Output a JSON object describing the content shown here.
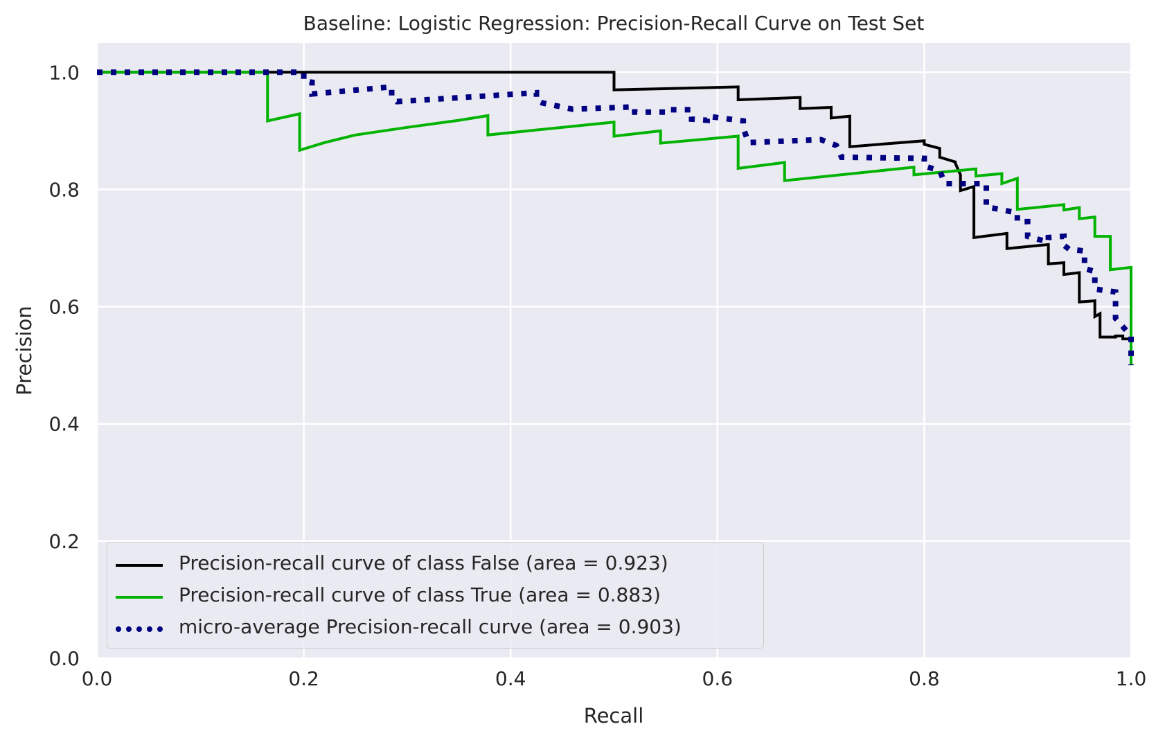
{
  "chart_data": {
    "type": "line",
    "title": "Baseline: Logistic Regression: Precision-Recall Curve on Test Set",
    "xlabel": "Recall",
    "ylabel": "Precision",
    "xlim": [
      0.0,
      1.0
    ],
    "ylim": [
      0.0,
      1.05
    ],
    "x_ticks": [
      "0.0",
      "0.2",
      "0.4",
      "0.6",
      "0.8",
      "1.0"
    ],
    "y_ticks": [
      "0.0",
      "0.2",
      "0.4",
      "0.6",
      "0.8",
      "1.0"
    ],
    "grid": true,
    "legend_position": "lower-left",
    "series": [
      {
        "name": "Precision-recall curve of class False (area = 0.923)",
        "color": "#000000",
        "style": "solid",
        "x": [
          0.0,
          0.5,
          0.5,
          0.62,
          0.62,
          0.68,
          0.68,
          0.71,
          0.71,
          0.728,
          0.728,
          0.8,
          0.8,
          0.815,
          0.815,
          0.83,
          0.83,
          0.835,
          0.835,
          0.848,
          0.848,
          0.88,
          0.88,
          0.92,
          0.92,
          0.935,
          0.935,
          0.95,
          0.95,
          0.965,
          0.965,
          0.97,
          0.97,
          0.985,
          0.985,
          0.992,
          0.992,
          1.0
        ],
        "y": [
          1.0,
          1.0,
          0.97,
          0.975,
          0.953,
          0.957,
          0.938,
          0.94,
          0.922,
          0.925,
          0.873,
          0.883,
          0.877,
          0.87,
          0.855,
          0.847,
          0.845,
          0.825,
          0.798,
          0.805,
          0.718,
          0.725,
          0.699,
          0.706,
          0.673,
          0.675,
          0.655,
          0.658,
          0.608,
          0.61,
          0.583,
          0.588,
          0.548,
          0.548,
          0.55,
          0.55,
          0.545,
          0.545
        ]
      },
      {
        "name": "Precision-recall curve of class True (area = 0.883)",
        "color": "#00b300",
        "style": "solid",
        "x": [
          0.0,
          0.165,
          0.165,
          0.196,
          0.196,
          0.22,
          0.25,
          0.3,
          0.35,
          0.378,
          0.378,
          0.5,
          0.5,
          0.545,
          0.545,
          0.62,
          0.62,
          0.665,
          0.665,
          0.79,
          0.79,
          0.85,
          0.85,
          0.875,
          0.875,
          0.89,
          0.89,
          0.935,
          0.935,
          0.95,
          0.95,
          0.965,
          0.965,
          0.98,
          0.98,
          1.0,
          1.0
        ],
        "y": [
          1.0,
          1.0,
          0.917,
          0.929,
          0.867,
          0.88,
          0.893,
          0.906,
          0.918,
          0.926,
          0.893,
          0.915,
          0.891,
          0.9,
          0.879,
          0.891,
          0.836,
          0.846,
          0.815,
          0.838,
          0.825,
          0.835,
          0.823,
          0.827,
          0.81,
          0.819,
          0.766,
          0.774,
          0.765,
          0.769,
          0.75,
          0.753,
          0.72,
          0.72,
          0.663,
          0.667,
          0.5
        ]
      },
      {
        "name": "micro-average Precision-recall curve (area = 0.903)",
        "color": "#000080",
        "style": "dotted",
        "x": [
          0.0,
          0.2,
          0.2,
          0.208,
          0.208,
          0.285,
          0.285,
          0.29,
          0.29,
          0.425,
          0.425,
          0.43,
          0.43,
          0.46,
          0.46,
          0.52,
          0.52,
          0.55,
          0.55,
          0.575,
          0.575,
          0.59,
          0.59,
          0.625,
          0.625,
          0.63,
          0.63,
          0.7,
          0.7,
          0.715,
          0.715,
          0.72,
          0.72,
          0.8,
          0.8,
          0.815,
          0.815,
          0.82,
          0.82,
          0.86,
          0.86,
          0.87,
          0.87,
          0.89,
          0.89,
          0.9,
          0.9,
          0.92,
          0.92,
          0.935,
          0.935,
          0.94,
          0.94,
          0.955,
          0.955,
          0.965,
          0.965,
          0.985,
          0.985,
          1.0,
          1.0
        ],
        "y": [
          1.0,
          1.0,
          0.985,
          0.983,
          0.963,
          0.975,
          0.958,
          0.95,
          0.95,
          0.965,
          0.952,
          0.948,
          0.948,
          0.937,
          0.937,
          0.941,
          0.932,
          0.932,
          0.936,
          0.936,
          0.92,
          0.918,
          0.925,
          0.917,
          0.905,
          0.88,
          0.88,
          0.885,
          0.885,
          0.875,
          0.875,
          0.855,
          0.855,
          0.853,
          0.84,
          0.832,
          0.832,
          0.81,
          0.81,
          0.81,
          0.77,
          0.767,
          0.767,
          0.76,
          0.745,
          0.745,
          0.72,
          0.71,
          0.718,
          0.72,
          0.705,
          0.698,
          0.698,
          0.695,
          0.665,
          0.66,
          0.63,
          0.625,
          0.58,
          0.55,
          0.5
        ]
      }
    ]
  }
}
